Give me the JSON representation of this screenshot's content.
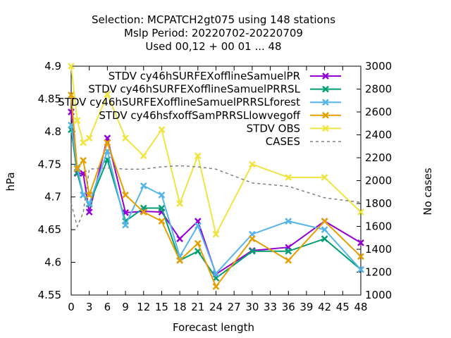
{
  "chart_data": {
    "type": "line",
    "title_lines": [
      "Selection: MCPATCH2gt075 using   148 stations",
      "Mslp   Period: 20220702-20220709",
      "Used  00,12 + 00 01 ... 48"
    ],
    "xlabel": "Forecast length",
    "ylabel": "hPa",
    "y2label": "No cases",
    "xlim": [
      0,
      48
    ],
    "ylim": [
      4.55,
      4.9
    ],
    "y2lim": [
      1000,
      3000
    ],
    "xticks": [
      "0",
      "3",
      "6",
      "9",
      "12",
      "15",
      "18",
      "21",
      "24",
      "27",
      "30",
      "33",
      "36",
      "39",
      "42",
      "45",
      "48"
    ],
    "yticks": [
      "4.55",
      "4.6",
      "4.65",
      "4.7",
      "4.75",
      "4.8",
      "4.85",
      "4.9"
    ],
    "y2ticks": [
      "1000",
      "1200",
      "1400",
      "1600",
      "1800",
      "2000",
      "2200",
      "2400",
      "2600",
      "2800",
      "3000"
    ],
    "legend_position": "top-right",
    "series": [
      {
        "name": "STDV cy46h_SURFEX_offline_SamuelPR",
        "legend_text": "STDV cy46hSURFEXofflineSamuelPR",
        "color": "#9400d3",
        "marker": "x",
        "axis": "y",
        "x": [
          0,
          1,
          2,
          3,
          6,
          9,
          12,
          15,
          18,
          21,
          24,
          30,
          36,
          42,
          48
        ],
        "y": [
          4.83,
          4.736,
          4.736,
          4.677,
          4.79,
          4.676,
          4.678,
          4.677,
          4.636,
          4.663,
          4.582,
          4.618,
          4.623,
          4.663,
          4.63
        ]
      },
      {
        "name": "STDV cy46h_SURFEX_offline_SamuelPR_RSL",
        "legend_text": "STDV cy46hSURFEXofflineSamuelPRRSL",
        "color": "#009e73",
        "marker": "x",
        "axis": "y",
        "x": [
          0,
          1,
          2,
          3,
          6,
          9,
          12,
          15,
          18,
          21,
          24,
          30,
          36,
          42,
          48
        ],
        "y": [
          4.803,
          4.737,
          4.703,
          4.689,
          4.757,
          4.663,
          4.683,
          4.683,
          4.603,
          4.617,
          4.576,
          4.617,
          4.617,
          4.636,
          4.589
        ]
      },
      {
        "name": "STDV cy46h_SURFEX_offline_SamuelPR_RSL_forest",
        "legend_text": "STDV cy46hSURFEXofflineSamuelPRRSLforest",
        "color": "#56b4e9",
        "marker": "x",
        "axis": "y",
        "x": [
          0,
          1,
          2,
          3,
          6,
          9,
          12,
          15,
          18,
          21,
          24,
          30,
          36,
          42,
          48
        ],
        "y": [
          4.81,
          4.745,
          4.703,
          4.69,
          4.77,
          4.657,
          4.717,
          4.703,
          4.609,
          4.656,
          4.583,
          4.643,
          4.663,
          4.65,
          4.589
        ]
      },
      {
        "name": "STDV cy46h_sfxoff_SamPR_RSL_lowvegoff",
        "legend_text": "STDV cy46hsfxoffSamPRRSLlowvegoff",
        "color": "#e69f00",
        "marker": "x",
        "axis": "y",
        "x": [
          0,
          1,
          2,
          3,
          6,
          9,
          12,
          15,
          18,
          21,
          24,
          30,
          36,
          42,
          48
        ],
        "y": [
          4.856,
          4.743,
          4.756,
          4.703,
          4.783,
          4.703,
          4.677,
          4.663,
          4.603,
          4.629,
          4.563,
          4.636,
          4.603,
          4.663,
          4.609
        ]
      },
      {
        "name": "STDV OBS",
        "legend_text": "STDV OBS",
        "color": "#f0e442",
        "marker": "x",
        "axis": "y",
        "x": [
          0,
          1,
          2,
          3,
          6,
          9,
          12,
          15,
          18,
          21,
          24,
          30,
          36,
          42,
          48
        ],
        "y": [
          4.9,
          4.817,
          4.783,
          4.79,
          4.857,
          4.79,
          4.763,
          4.803,
          4.69,
          4.763,
          4.643,
          4.75,
          4.73,
          4.73,
          4.677
        ]
      },
      {
        "name": "CASES",
        "legend_text": "CASES",
        "color": "#808080",
        "marker": "none",
        "dashed": true,
        "axis": "y2",
        "x": [
          0,
          1,
          2,
          3,
          6,
          9,
          12,
          15,
          18,
          21,
          24,
          30,
          36,
          42,
          48
        ],
        "y": [
          1800,
          1600,
          1720,
          2100,
          2110,
          2100,
          2100,
          2120,
          2130,
          2120,
          2100,
          1980,
          1950,
          1850,
          1810
        ]
      }
    ]
  }
}
